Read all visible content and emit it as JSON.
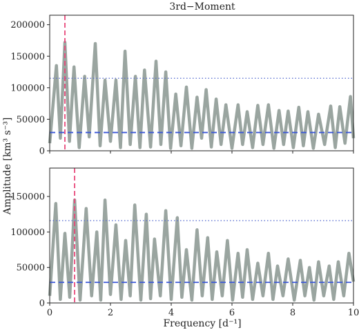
{
  "chart_data": {
    "type": "line",
    "title": "3rd−Moment",
    "xlabel": "Frequency [d⁻¹]",
    "ylabel": "Amplitude [km³ s⁻³]",
    "colors": {
      "series": "#9aa5a0",
      "marker": "#e8487a",
      "threshold_dashed": "#3a56d6",
      "threshold_dotted": "#5a6fd0"
    },
    "panels": [
      {
        "xlim": [
          0,
          10
        ],
        "ylim": [
          0,
          215000
        ],
        "yticks": [
          0,
          50000,
          100000,
          150000,
          200000
        ],
        "ytick_labels": [
          "0",
          "50000",
          "100000",
          "150000",
          "200000"
        ],
        "xticks": [
          0,
          2,
          4,
          6,
          8,
          10
        ],
        "xtick_labels": [],
        "marker_frequency": 0.5,
        "threshold_dotted": 115000,
        "threshold_dashed": 29000,
        "peaks": [
          [
            0.22,
            135000
          ],
          [
            0.5,
            172000
          ],
          [
            0.8,
            133000
          ],
          [
            1.15,
            118000
          ],
          [
            1.5,
            170000
          ],
          [
            1.82,
            112000
          ],
          [
            2.18,
            112000
          ],
          [
            2.48,
            158000
          ],
          [
            2.82,
            118000
          ],
          [
            3.12,
            128000
          ],
          [
            3.5,
            142000
          ],
          [
            3.82,
            125000
          ],
          [
            4.15,
            90000
          ],
          [
            4.5,
            101000
          ],
          [
            4.85,
            85000
          ],
          [
            5.15,
            97000
          ],
          [
            5.48,
            82000
          ],
          [
            5.8,
            73000
          ],
          [
            6.2,
            73000
          ],
          [
            6.5,
            62000
          ],
          [
            6.85,
            72000
          ],
          [
            7.2,
            73000
          ],
          [
            7.55,
            64000
          ],
          [
            7.85,
            63000
          ],
          [
            8.2,
            69000
          ],
          [
            8.5,
            62000
          ],
          [
            8.85,
            58000
          ],
          [
            9.25,
            71000
          ],
          [
            9.55,
            70000
          ],
          [
            9.9,
            86000
          ]
        ],
        "troughs": [
          [
            0.0,
            12000
          ],
          [
            0.35,
            20000
          ],
          [
            0.65,
            15000
          ],
          [
            0.97,
            5000
          ],
          [
            1.3,
            22000
          ],
          [
            1.66,
            8000
          ],
          [
            2.0,
            15000
          ],
          [
            2.33,
            5000
          ],
          [
            2.65,
            10000
          ],
          [
            2.97,
            5000
          ],
          [
            3.32,
            6000
          ],
          [
            3.66,
            10000
          ],
          [
            3.98,
            4000
          ],
          [
            4.32,
            8000
          ],
          [
            4.68,
            4000
          ],
          [
            5.0,
            20000
          ],
          [
            5.32,
            6000
          ],
          [
            5.64,
            10000
          ],
          [
            6.0,
            4000
          ],
          [
            6.35,
            10000
          ],
          [
            6.68,
            5000
          ],
          [
            7.02,
            10000
          ],
          [
            7.38,
            4000
          ],
          [
            7.7,
            10000
          ],
          [
            8.02,
            5000
          ],
          [
            8.35,
            8000
          ],
          [
            8.68,
            4000
          ],
          [
            9.05,
            10000
          ],
          [
            9.4,
            5000
          ],
          [
            9.72,
            12000
          ],
          [
            10.0,
            20000
          ]
        ]
      },
      {
        "xlim": [
          0,
          10
        ],
        "ylim": [
          0,
          190000
        ],
        "yticks": [
          0,
          50000,
          100000,
          150000
        ],
        "ytick_labels": [
          "0",
          "50000",
          "100000",
          "150000"
        ],
        "xticks": [
          0,
          2,
          4,
          6,
          8,
          10
        ],
        "xtick_labels": [
          "0",
          "2",
          "4",
          "6",
          "8",
          "10"
        ],
        "marker_frequency": 0.82,
        "threshold_dotted": 116000,
        "threshold_dashed": 29000,
        "peaks": [
          [
            0.2,
            140000
          ],
          [
            0.5,
            98000
          ],
          [
            0.82,
            145000
          ],
          [
            1.2,
            133000
          ],
          [
            1.55,
            100000
          ],
          [
            1.82,
            145000
          ],
          [
            2.18,
            110000
          ],
          [
            2.5,
            88000
          ],
          [
            2.8,
            138000
          ],
          [
            3.18,
            125000
          ],
          [
            3.45,
            90000
          ],
          [
            3.82,
            130000
          ],
          [
            4.2,
            120000
          ],
          [
            4.5,
            75000
          ],
          [
            4.85,
            103000
          ],
          [
            5.2,
            92000
          ],
          [
            5.5,
            72000
          ],
          [
            5.85,
            88000
          ],
          [
            6.2,
            70000
          ],
          [
            6.5,
            75000
          ],
          [
            6.85,
            56000
          ],
          [
            7.2,
            70000
          ],
          [
            7.5,
            52000
          ],
          [
            7.85,
            62000
          ],
          [
            8.25,
            60000
          ],
          [
            8.55,
            50000
          ],
          [
            8.85,
            58000
          ],
          [
            9.2,
            52000
          ],
          [
            9.5,
            58000
          ],
          [
            9.85,
            70000
          ]
        ],
        "troughs": [
          [
            0.0,
            10000
          ],
          [
            0.35,
            5000
          ],
          [
            0.66,
            8000
          ],
          [
            1.0,
            4000
          ],
          [
            1.38,
            10000
          ],
          [
            1.68,
            4000
          ],
          [
            2.0,
            12000
          ],
          [
            2.35,
            5000
          ],
          [
            2.65,
            10000
          ],
          [
            3.0,
            4000
          ],
          [
            3.32,
            6000
          ],
          [
            3.64,
            10000
          ],
          [
            4.0,
            5000
          ],
          [
            4.35,
            8000
          ],
          [
            4.68,
            4000
          ],
          [
            5.02,
            10000
          ],
          [
            5.35,
            5000
          ],
          [
            5.68,
            10000
          ],
          [
            6.02,
            4000
          ],
          [
            6.35,
            8000
          ],
          [
            6.68,
            5000
          ],
          [
            7.02,
            10000
          ],
          [
            7.35,
            5000
          ],
          [
            7.68,
            10000
          ],
          [
            8.05,
            4000
          ],
          [
            8.4,
            10000
          ],
          [
            8.7,
            4000
          ],
          [
            9.02,
            10000
          ],
          [
            9.35,
            5000
          ],
          [
            9.68,
            10000
          ],
          [
            10.0,
            30000
          ]
        ]
      }
    ]
  }
}
